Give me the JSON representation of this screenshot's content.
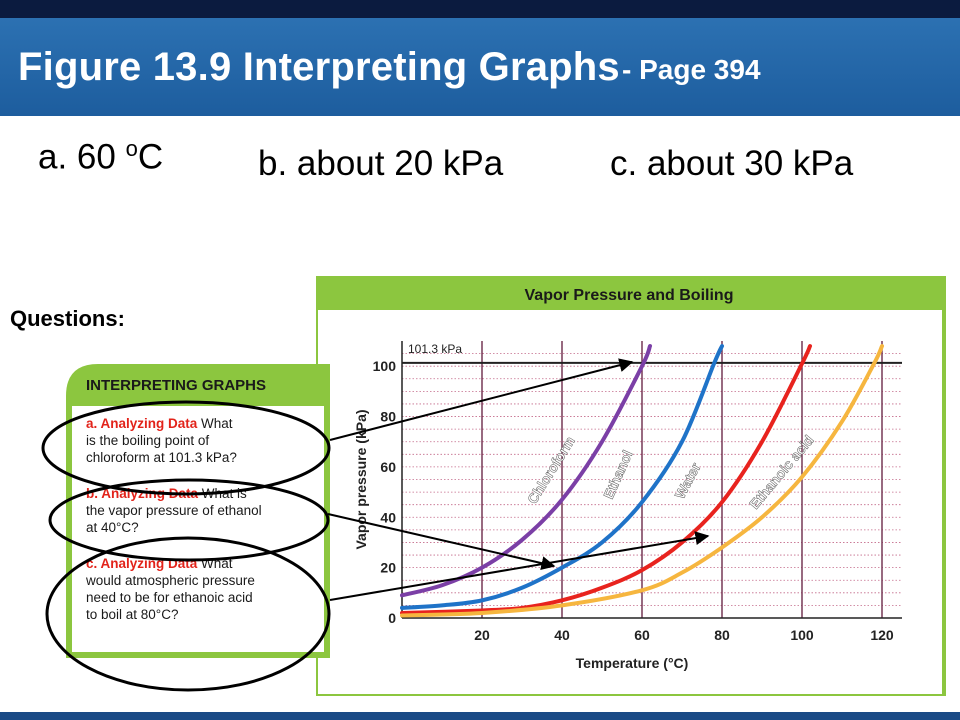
{
  "header": {
    "title": "Figure 13.9 Interpreting Graphs",
    "page": "- Page 394"
  },
  "answers": {
    "a_prefix": "a. 60 ",
    "a_sup": "o",
    "a_suffix": "C",
    "b": "b. about 20 kPa",
    "c": "c. about 30 kPa"
  },
  "questions_label": "Questions:",
  "panel": {
    "title": "INTERPRETING GRAPHS",
    "questions": [
      {
        "tag": "a. Analyzing Data",
        "lines": [
          "What",
          "is the boiling point of",
          "chloroform at 101.3 kPa?"
        ]
      },
      {
        "tag": "b. Analyzing Data",
        "lines": [
          "What is",
          "the vapor pressure of ethanol",
          "at 40°C?"
        ]
      },
      {
        "tag": "c. Analyzing Data",
        "lines": [
          "What",
          "would atmospheric pressure",
          "need to be for ethanoic acid",
          "to boil at 80°C?"
        ]
      }
    ]
  },
  "chart_data": {
    "type": "line",
    "title": "Vapor Pressure and Boiling",
    "xlabel": "Temperature (°C)",
    "ylabel": "Vapor pressure (kPa)",
    "xlim": [
      0,
      125
    ],
    "ylim": [
      0,
      110
    ],
    "x_ticks": [
      20,
      40,
      60,
      80,
      100,
      120
    ],
    "y_ticks": [
      0,
      20,
      40,
      60,
      80,
      100
    ],
    "reference_line": {
      "value": 101.3,
      "label": "101.3 kPa"
    },
    "series": [
      {
        "name": "Chloroform",
        "color": "#7b3fa6",
        "x": [
          0,
          10,
          20,
          30,
          40,
          50,
          60,
          62
        ],
        "y": [
          9,
          13,
          20,
          31,
          47,
          70,
          100,
          108
        ]
      },
      {
        "name": "Ethanol",
        "color": "#1f73c8",
        "x": [
          0,
          10,
          20,
          30,
          40,
          50,
          60,
          70,
          78,
          80
        ],
        "y": [
          4,
          5,
          7,
          12,
          20,
          30,
          46,
          70,
          101,
          108
        ]
      },
      {
        "name": "Water",
        "color": "#e8231e",
        "x": [
          0,
          20,
          30,
          40,
          50,
          60,
          70,
          80,
          90,
          100,
          102
        ],
        "y": [
          2,
          3,
          4,
          7,
          12,
          19,
          30,
          46,
          70,
          101,
          108
        ]
      },
      {
        "name": "Ethanoic acid",
        "color": "#f6b63f",
        "x": [
          0,
          20,
          40,
          60,
          70,
          80,
          90,
          100,
          110,
          118,
          120
        ],
        "y": [
          1,
          2,
          5,
          11,
          18,
          28,
          40,
          56,
          78,
          101,
          108
        ]
      }
    ]
  }
}
